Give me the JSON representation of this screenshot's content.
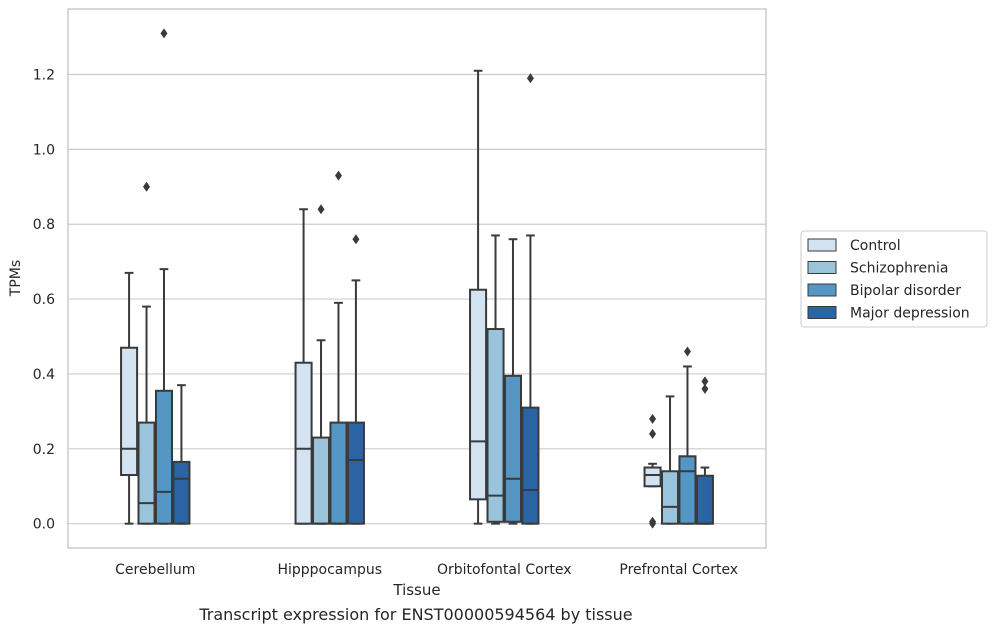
{
  "caption": "Transcript expression for ENST00000594564 by tissue",
  "chart_data": {
    "type": "box",
    "xlabel": "Tissue",
    "ylabel": "TPMs",
    "ylim": [
      -0.065,
      1.375
    ],
    "yticks": [
      "0.0",
      "0.2",
      "0.4",
      "0.6",
      "0.8",
      "1.0",
      "1.2"
    ],
    "grid": "horizontal",
    "legend_position": "right",
    "categories": [
      "Cerebellum",
      "Hipppocampus",
      "Orbitofontal Cortex",
      "Prefrontal Cortex"
    ],
    "series": [
      {
        "name": "Control",
        "color": "#d3e3f2",
        "boxes": [
          {
            "whislo": 0.0,
            "q1": 0.13,
            "med": 0.2,
            "q3": 0.47,
            "whishi": 0.67,
            "fliers": []
          },
          {
            "whislo": 0.0,
            "q1": 0.0,
            "med": 0.2,
            "q3": 0.43,
            "whishi": 0.84,
            "fliers": []
          },
          {
            "whislo": 0.0,
            "q1": 0.065,
            "med": 0.22,
            "q3": 0.625,
            "whishi": 1.21,
            "fliers": []
          },
          {
            "whislo": 0.1,
            "q1": 0.1,
            "med": 0.13,
            "q3": 0.15,
            "whishi": 0.16,
            "fliers": [
              0.28,
              0.24,
              0.005,
              0.0
            ]
          }
        ]
      },
      {
        "name": "Schizophrenia",
        "color": "#99c4dc",
        "boxes": [
          {
            "whislo": 0.0,
            "q1": 0.0,
            "med": 0.055,
            "q3": 0.27,
            "whishi": 0.58,
            "fliers": [
              0.9
            ]
          },
          {
            "whislo": 0.0,
            "q1": 0.0,
            "med": 0.0,
            "q3": 0.23,
            "whishi": 0.49,
            "fliers": [
              0.84
            ]
          },
          {
            "whislo": 0.0,
            "q1": 0.005,
            "med": 0.075,
            "q3": 0.52,
            "whishi": 0.77,
            "fliers": []
          },
          {
            "whislo": 0.0,
            "q1": 0.0,
            "med": 0.045,
            "q3": 0.14,
            "whishi": 0.34,
            "fliers": []
          }
        ]
      },
      {
        "name": "Bipolar disorder",
        "color": "#5496c4",
        "boxes": [
          {
            "whislo": 0.0,
            "q1": 0.0,
            "med": 0.085,
            "q3": 0.355,
            "whishi": 0.68,
            "fliers": [
              1.31
            ]
          },
          {
            "whislo": 0.0,
            "q1": 0.0,
            "med": 0.0,
            "q3": 0.27,
            "whishi": 0.59,
            "fliers": [
              0.93
            ]
          },
          {
            "whislo": 0.0,
            "q1": 0.005,
            "med": 0.12,
            "q3": 0.395,
            "whishi": 0.76,
            "fliers": []
          },
          {
            "whislo": 0.0,
            "q1": 0.0,
            "med": 0.14,
            "q3": 0.18,
            "whishi": 0.42,
            "fliers": [
              0.46
            ]
          }
        ]
      },
      {
        "name": "Major depression",
        "color": "#2b64a4",
        "boxes": [
          {
            "whislo": 0.0,
            "q1": 0.0,
            "med": 0.12,
            "q3": 0.165,
            "whishi": 0.37,
            "fliers": []
          },
          {
            "whislo": 0.0,
            "q1": 0.0,
            "med": 0.17,
            "q3": 0.27,
            "whishi": 0.65,
            "fliers": [
              0.76
            ]
          },
          {
            "whislo": 0.0,
            "q1": 0.0,
            "med": 0.09,
            "q3": 0.31,
            "whishi": 0.77,
            "fliers": [
              1.19
            ]
          },
          {
            "whislo": 0.0,
            "q1": 0.0,
            "med": 0.0,
            "q3": 0.128,
            "whishi": 0.15,
            "fliers": [
              0.38,
              0.36
            ]
          }
        ]
      }
    ]
  }
}
